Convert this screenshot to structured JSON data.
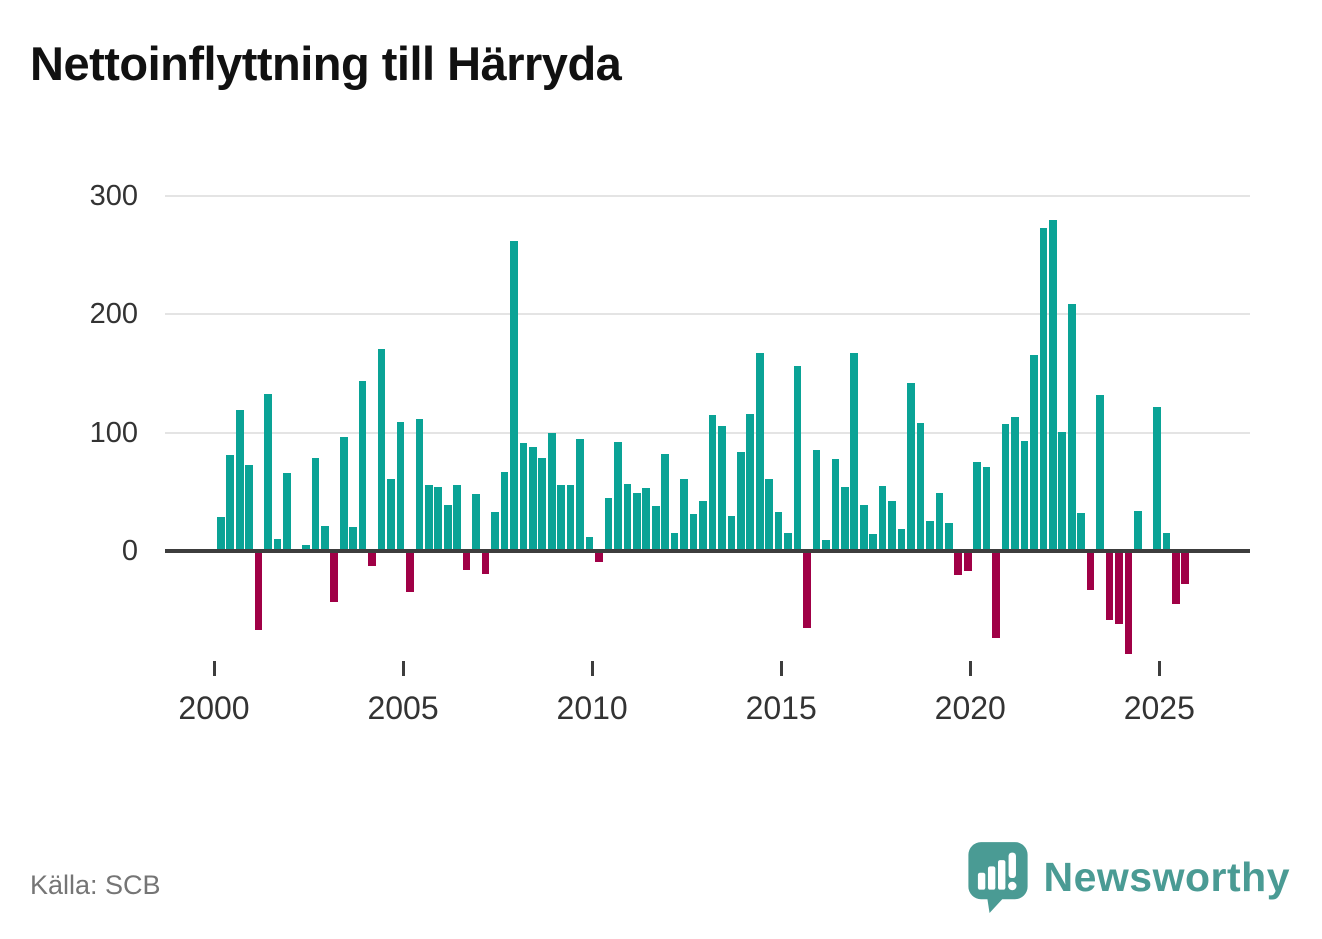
{
  "title": "Nettoinflyttning till Härryda",
  "source": "Källa: SCB",
  "brand": {
    "name": "Newsworthy",
    "color": "#4a9b94"
  },
  "chart_data": {
    "type": "bar",
    "title": "Nettoinflyttning till Härryda",
    "frequency": "quarterly",
    "x_start": {
      "year": 2000,
      "quarter": 1
    },
    "x_end": {
      "year": 2025,
      "quarter": 3
    },
    "values": [
      29,
      81,
      119,
      73,
      -65,
      133,
      10,
      66,
      0,
      5,
      79,
      21,
      -41,
      96,
      20,
      144,
      -11,
      171,
      61,
      109,
      -33,
      112,
      56,
      54,
      39,
      56,
      -14,
      48,
      -18,
      33,
      67,
      262,
      91,
      88,
      79,
      100,
      56,
      56,
      95,
      12,
      -8,
      45,
      92,
      57,
      49,
      53,
      38,
      82,
      15,
      61,
      31,
      42,
      115,
      106,
      30,
      84,
      116,
      167,
      61,
      33,
      15,
      156,
      -63,
      85,
      9,
      78,
      54,
      167,
      39,
      14,
      55,
      42,
      19,
      142,
      108,
      25,
      49,
      24,
      -19,
      -15,
      75,
      71,
      -72,
      107,
      113,
      93,
      166,
      273,
      280,
      101,
      209,
      32,
      -31,
      132,
      -57,
      -60,
      -85,
      34,
      0,
      122,
      15,
      -43,
      -26
    ],
    "x_tick_labels": [
      "2000",
      "2005",
      "2010",
      "2015",
      "2020",
      "2025"
    ],
    "y_tick_labels": [
      "0",
      "100",
      "200",
      "300"
    ],
    "y_ticks": [
      0,
      100,
      200,
      300
    ],
    "ylim": [
      -100,
      320
    ],
    "grid": "horizontal",
    "legend": "none",
    "positive_color": "#0aa396",
    "negative_color": "#a00046"
  }
}
